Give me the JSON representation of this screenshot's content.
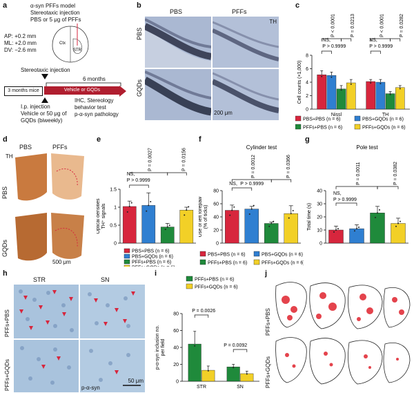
{
  "panel_labels": {
    "a": "a",
    "b": "b",
    "c": "c",
    "d": "d",
    "e": "e",
    "f": "f",
    "g": "g",
    "h": "h",
    "i": "i",
    "j": "j"
  },
  "a": {
    "model": "α-syn PFFs model",
    "inj1": "Stereotaxic injection",
    "inj2": "PBS or 5 μg of PFFs",
    "ap": "AP: +0.2 mm",
    "ml": "ML: +2.0 mm",
    "dv": "DV: −2.6 mm",
    "ctx": "Ctx",
    "str": "STR",
    "stereo": "Stereotaxic injection",
    "months6": "6 months",
    "mice": "3 months mice",
    "veh": "Vehicle or GQDs",
    "ip1": "I.p. injection",
    "ip2": "Vehicle or 50 μg of",
    "ip3": "GQDs (biweekly)",
    "ihc1": "IHC, Stereology",
    "ihc2": "behavior test",
    "ihc3": "p-α-syn pathology"
  },
  "b": {
    "col1": "PBS",
    "col2": "PFFs",
    "row1": "PBS",
    "row2": "GQDs",
    "th": "TH",
    "scale": "200 μm"
  },
  "d": {
    "col1": "PBS",
    "col2": "PFFs",
    "row1": "PBS",
    "row2": "GQDs",
    "th": "TH",
    "scale": "500 μm"
  },
  "h": {
    "col1": "STR",
    "col2": "SN",
    "row1": "PFFs+PBS",
    "row2": "PFFs+GQDs",
    "marker": "p-α-syn",
    "scale": "50 μm"
  },
  "j": {
    "row1": "PFFs+PBS",
    "row2": "PFFs+GQDs"
  },
  "legend4": [
    {
      "name": "PBS+PBS (n = 6)",
      "color": "#d7263d"
    },
    {
      "name": "PBS+GQDs (n = 6)",
      "color": "#2f7fd1"
    },
    {
      "name": "PFFs+PBS (n = 6)",
      "color": "#1f8a3b"
    },
    {
      "name": "PFFs+GQDs (n = 6)",
      "color": "#f2d027"
    }
  ],
  "legend2": [
    {
      "name": "PFFs+PBS (n = 6)",
      "color": "#1f8a3b"
    },
    {
      "name": "PFFs+GQDs (n = 6)",
      "color": "#f2d027"
    }
  ],
  "colors": [
    "#d7263d",
    "#2f7fd1",
    "#1f8a3b",
    "#f2d027"
  ],
  "chart_data": [
    {
      "panel": "c",
      "type": "bar",
      "ylabel": "Cell counts (×1,000)",
      "ylim": [
        0,
        8
      ],
      "yticks": [
        0,
        2,
        4,
        6,
        8
      ],
      "categories": [
        "Nissl",
        "TH"
      ],
      "series": [
        {
          "name": "PBS+PBS (n = 6)",
          "values": [
            5.1,
            4.1
          ],
          "err": [
            0.6,
            0.3
          ]
        },
        {
          "name": "PBS+GQDs (n = 6)",
          "values": [
            5.0,
            4.0
          ],
          "err": [
            0.5,
            0.4
          ]
        },
        {
          "name": "PFFs+PBS (n = 6)",
          "values": [
            3.0,
            2.3
          ],
          "err": [
            0.5,
            0.3
          ]
        },
        {
          "name": "PFFs+GQDs (n = 6)",
          "values": [
            3.9,
            3.2
          ],
          "err": [
            0.5,
            0.3
          ]
        }
      ],
      "annotations": [
        "NS,",
        "P > 0.9999",
        "P < 0.0001",
        "P = 0.0213",
        "NS,",
        "P > 0.9999",
        "P < 0.0001",
        "P = 0.0282"
      ]
    },
    {
      "panel": "e",
      "type": "bar",
      "ylabel": "Optical densities TH+ signals",
      "ylim": [
        0,
        1.5
      ],
      "yticks": [
        0,
        0.5,
        1.0,
        1.5
      ],
      "categories": [
        "PBS+PBS",
        "PBS+GQDs",
        "PFFs+PBS",
        "PFFs+GQDs"
      ],
      "values": [
        1.02,
        1.05,
        0.45,
        0.92
      ],
      "err": [
        0.15,
        0.35,
        0.1,
        0.08
      ],
      "annotations": [
        "NS,",
        "P > 0.9999",
        "P = 0.0027",
        "P = 0.0156"
      ]
    },
    {
      "panel": "f",
      "type": "bar",
      "title": "Cylinder test",
      "ylabel": "Use of left forepaw (% of ticks)",
      "ylim": [
        0,
        80
      ],
      "yticks": [
        0,
        20,
        40,
        60,
        80
      ],
      "categories": [
        "PBS+PBS",
        "PBS+GQDs",
        "PFFs+PBS",
        "PFFs+GQDs"
      ],
      "values": [
        50,
        52,
        30,
        45
      ],
      "err": [
        8,
        4,
        2,
        12
      ],
      "annotations": [
        "NS,",
        "P > 0.9999",
        "P = 0.0012",
        "P = 0.0366"
      ]
    },
    {
      "panel": "g",
      "type": "bar",
      "title": "Pole test",
      "ylabel": "Total time (s)",
      "ylim": [
        0,
        40
      ],
      "yticks": [
        0,
        10,
        20,
        30,
        40
      ],
      "categories": [
        "PBS+PBS",
        "PBS+GQDs",
        "PFFs+PBS",
        "PFFs+GQDs"
      ],
      "values": [
        10,
        11,
        23,
        15
      ],
      "err": [
        3,
        3,
        5,
        4
      ],
      "annotations": [
        "NS,",
        "P > 0.9999",
        "P = 0.0011",
        "P = 0.0382"
      ]
    },
    {
      "panel": "i",
      "type": "bar",
      "ylabel": "p-α-syn inclusion no. per field",
      "ylim": [
        0,
        80
      ],
      "yticks": [
        0,
        20,
        40,
        60,
        80
      ],
      "categories": [
        "STR",
        "SN"
      ],
      "series": [
        {
          "name": "PFFs+PBS (n = 6)",
          "values": [
            44,
            17
          ],
          "err": [
            15,
            3
          ]
        },
        {
          "name": "PFFs+GQDs (n = 6)",
          "values": [
            13,
            9
          ],
          "err": [
            5,
            3
          ]
        }
      ],
      "annotations": [
        "P = 0.0026",
        "P = 0.0092"
      ]
    }
  ]
}
